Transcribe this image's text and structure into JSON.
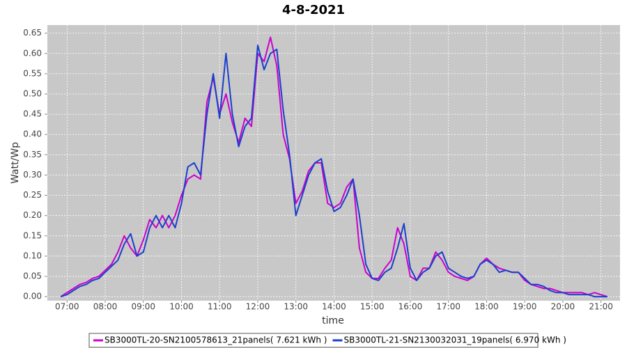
{
  "chart_data": {
    "type": "line",
    "title": "4-8-2021",
    "x_label": "time",
    "y_label": "Watt/Wp",
    "x": [
      "06:50",
      "07:00",
      "07:10",
      "07:20",
      "07:30",
      "07:40",
      "07:50",
      "08:00",
      "08:10",
      "08:20",
      "08:30",
      "08:40",
      "08:50",
      "09:00",
      "09:10",
      "09:20",
      "09:30",
      "09:40",
      "09:50",
      "10:00",
      "10:10",
      "10:20",
      "10:30",
      "10:40",
      "10:50",
      "11:00",
      "11:10",
      "11:20",
      "11:30",
      "11:40",
      "11:50",
      "12:00",
      "12:10",
      "12:20",
      "12:30",
      "12:40",
      "12:50",
      "13:00",
      "13:10",
      "13:20",
      "13:30",
      "13:40",
      "13:50",
      "14:00",
      "14:10",
      "14:20",
      "14:30",
      "14:40",
      "14:50",
      "15:00",
      "15:10",
      "15:20",
      "15:30",
      "15:40",
      "15:50",
      "16:00",
      "16:10",
      "16:20",
      "16:30",
      "16:40",
      "16:50",
      "17:00",
      "17:10",
      "17:20",
      "17:30",
      "17:40",
      "17:50",
      "18:00",
      "18:10",
      "18:20",
      "18:30",
      "18:40",
      "18:50",
      "19:00",
      "19:10",
      "19:20",
      "19:30",
      "19:40",
      "19:50",
      "20:00",
      "20:10",
      "20:20",
      "20:30",
      "20:40",
      "20:50",
      "21:00",
      "21:10"
    ],
    "series": [
      {
        "name": "SB3000TL-20-SN2100578613_21panels( 7.621 kWh )",
        "color": "#cc00cc",
        "values": [
          0,
          0.01,
          0.02,
          0.03,
          0.035,
          0.045,
          0.05,
          0.065,
          0.08,
          0.11,
          0.15,
          0.12,
          0.1,
          0.14,
          0.19,
          0.17,
          0.2,
          0.17,
          0.2,
          0.25,
          0.29,
          0.3,
          0.29,
          0.48,
          0.54,
          0.45,
          0.5,
          0.43,
          0.38,
          0.44,
          0.42,
          0.6,
          0.58,
          0.64,
          0.57,
          0.4,
          0.34,
          0.23,
          0.26,
          0.31,
          0.33,
          0.33,
          0.23,
          0.22,
          0.23,
          0.27,
          0.29,
          0.12,
          0.06,
          0.045,
          0.045,
          0.07,
          0.09,
          0.17,
          0.13,
          0.05,
          0.04,
          0.07,
          0.07,
          0.11,
          0.09,
          0.06,
          0.05,
          0.045,
          0.04,
          0.05,
          0.08,
          0.095,
          0.08,
          0.07,
          0.065,
          0.06,
          0.06,
          0.04,
          0.03,
          0.025,
          0.02,
          0.02,
          0.015,
          0.01,
          0.01,
          0.01,
          0.01,
          0.005,
          0.01,
          0.005,
          0
        ]
      },
      {
        "name": "SB3000TL-21-SN2130032031_19panels( 6.970 kWh )",
        "color": "#1a3fcc",
        "values": [
          0,
          0.005,
          0.015,
          0.025,
          0.03,
          0.04,
          0.045,
          0.06,
          0.075,
          0.09,
          0.13,
          0.155,
          0.1,
          0.11,
          0.17,
          0.2,
          0.17,
          0.2,
          0.17,
          0.23,
          0.32,
          0.33,
          0.3,
          0.45,
          0.55,
          0.44,
          0.6,
          0.45,
          0.37,
          0.42,
          0.44,
          0.62,
          0.56,
          0.6,
          0.61,
          0.46,
          0.35,
          0.2,
          0.25,
          0.3,
          0.33,
          0.34,
          0.26,
          0.21,
          0.22,
          0.25,
          0.29,
          0.2,
          0.08,
          0.045,
          0.04,
          0.06,
          0.07,
          0.12,
          0.18,
          0.07,
          0.04,
          0.06,
          0.07,
          0.1,
          0.11,
          0.07,
          0.06,
          0.05,
          0.045,
          0.05,
          0.08,
          0.09,
          0.08,
          0.06,
          0.065,
          0.06,
          0.06,
          0.045,
          0.03,
          0.03,
          0.025,
          0.015,
          0.01,
          0.01,
          0.005,
          0.005,
          0.005,
          0.005,
          0,
          0,
          0
        ]
      }
    ],
    "xlim": [
      "06:29",
      "21:30"
    ],
    "xticks": [
      "07:00",
      "08:00",
      "09:00",
      "10:00",
      "11:00",
      "12:00",
      "13:00",
      "14:00",
      "15:00",
      "16:00",
      "17:00",
      "18:00",
      "19:00",
      "20:00",
      "21:00"
    ],
    "ylim": [
      -0.01,
      0.67
    ],
    "yticks": [
      {
        "value": 0,
        "label": "0.00"
      },
      {
        "value": 0.05,
        "label": "0.05"
      },
      {
        "value": 0.1,
        "label": "0.10"
      },
      {
        "value": 0.15,
        "label": "0.15"
      },
      {
        "value": 0.2,
        "label": "0.20"
      },
      {
        "value": 0.25,
        "label": "0.25"
      },
      {
        "value": 0.3,
        "label": "0.30"
      },
      {
        "value": 0.35,
        "label": "0.35"
      },
      {
        "value": 0.4,
        "label": "0.40"
      },
      {
        "value": 0.45,
        "label": "0.45"
      },
      {
        "value": 0.5,
        "label": "0.50"
      },
      {
        "value": 0.55,
        "label": "0.55"
      },
      {
        "value": 0.6,
        "label": "0.60"
      },
      {
        "value": 0.65,
        "label": "0.65"
      }
    ],
    "grid": true,
    "legend": "bottom"
  }
}
